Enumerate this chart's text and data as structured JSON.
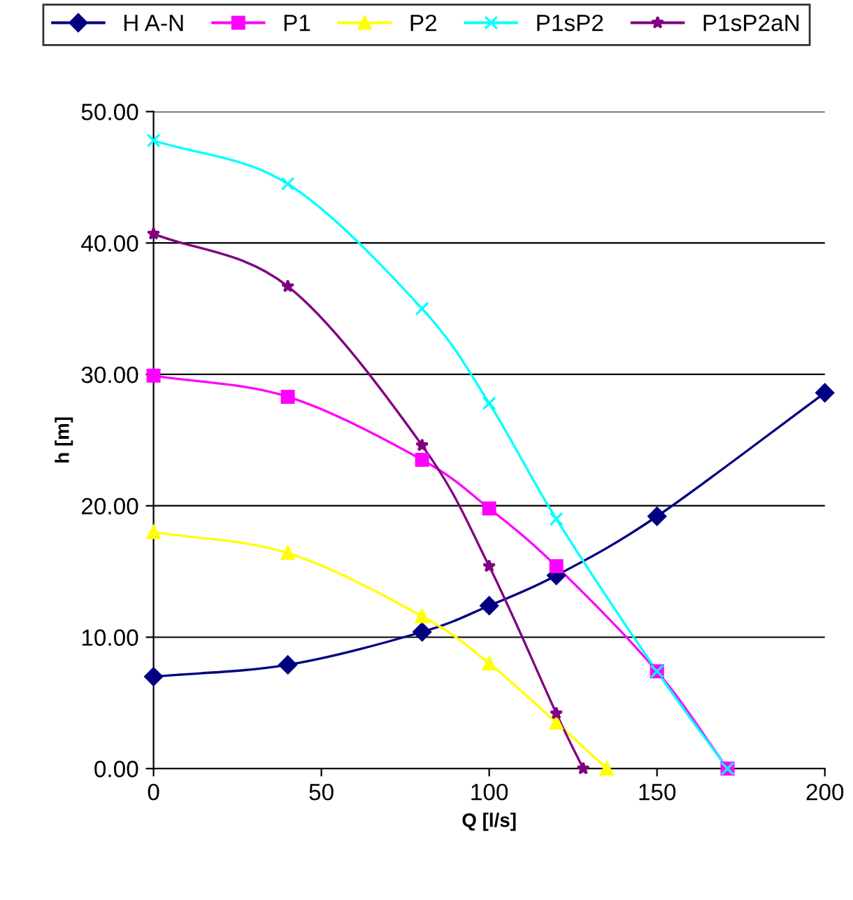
{
  "chart_data": {
    "type": "line",
    "xlabel": "Q [l/s]",
    "ylabel": "h [m]",
    "xlim": [
      0,
      200
    ],
    "xticks": [
      0,
      50,
      100,
      150,
      200
    ],
    "ylim": [
      0,
      50
    ],
    "yticks": [
      {
        "value": 0,
        "label": "0.00"
      },
      {
        "value": 10,
        "label": "10.00"
      },
      {
        "value": 20,
        "label": "20.00"
      },
      {
        "value": 30,
        "label": "30.00"
      },
      {
        "value": 40,
        "label": "40.00"
      },
      {
        "value": 50,
        "label": "50.00"
      }
    ],
    "grid": "y",
    "legend": "top",
    "line_style": "solid",
    "series": [
      {
        "name": "H A-N",
        "color": "#000080",
        "marker": "diamond",
        "x": [
          0,
          40,
          80,
          100,
          120,
          150,
          200
        ],
        "values": [
          7.0,
          7.9,
          10.4,
          12.4,
          14.7,
          19.2,
          28.6
        ]
      },
      {
        "name": "P1",
        "color": "#ff00ff",
        "marker": "square",
        "x": [
          0,
          40,
          80,
          100,
          120,
          150,
          171
        ],
        "values": [
          29.9,
          28.3,
          23.5,
          19.8,
          15.4,
          7.4,
          0
        ]
      },
      {
        "name": "P2",
        "color": "#ffff00",
        "marker": "triangle",
        "x": [
          0,
          40,
          80,
          100,
          120,
          135
        ],
        "values": [
          18.0,
          16.4,
          11.6,
          8.0,
          3.5,
          0
        ]
      },
      {
        "name": "P1sP2",
        "color": "#00ffff",
        "marker": "cross",
        "x": [
          0,
          40,
          80,
          100,
          120,
          150,
          171
        ],
        "values": [
          47.8,
          44.5,
          35.0,
          27.8,
          19.0,
          7.4,
          0
        ]
      },
      {
        "name": "P1sP2aN",
        "color": "#800080",
        "marker": "star",
        "x": [
          0,
          40,
          80,
          100,
          120,
          128
        ],
        "values": [
          40.7,
          36.7,
          24.6,
          15.4,
          4.2,
          0
        ]
      }
    ]
  }
}
